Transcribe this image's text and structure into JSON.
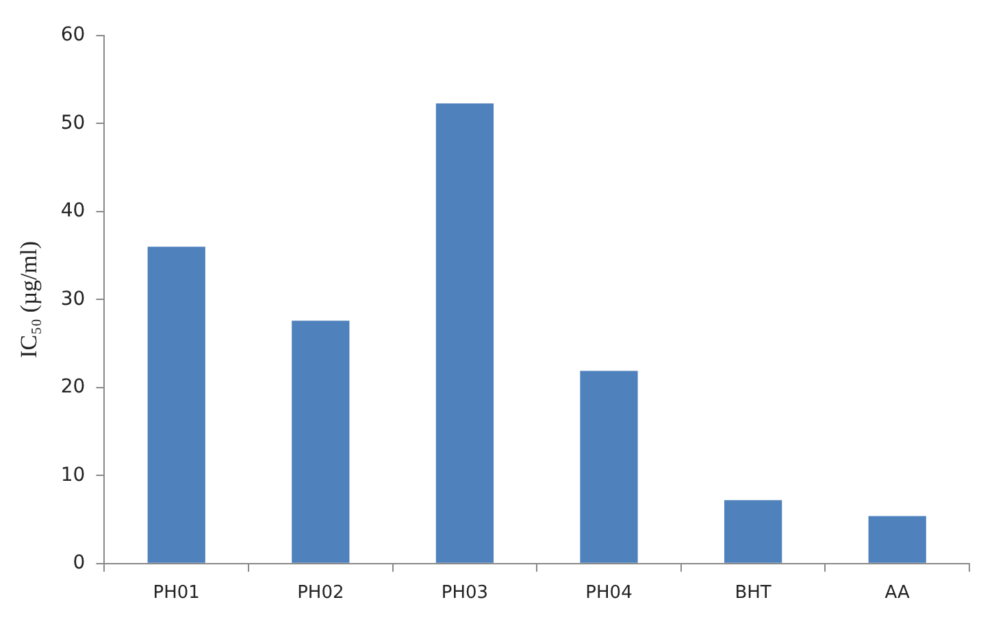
{
  "chart_data": {
    "type": "bar",
    "ylabel": "IC₅₀ (µg/ml)",
    "categories": [
      "PH01",
      "PH02",
      "PH03",
      "PH04",
      "BHT",
      "AA"
    ],
    "values": [
      36.0,
      27.6,
      52.3,
      21.9,
      7.2,
      5.4
    ],
    "color": "#4f81bd",
    "ylim": [
      0,
      60
    ],
    "yticks": [
      0,
      10,
      20,
      30,
      40,
      50,
      60
    ],
    "grid": false
  }
}
